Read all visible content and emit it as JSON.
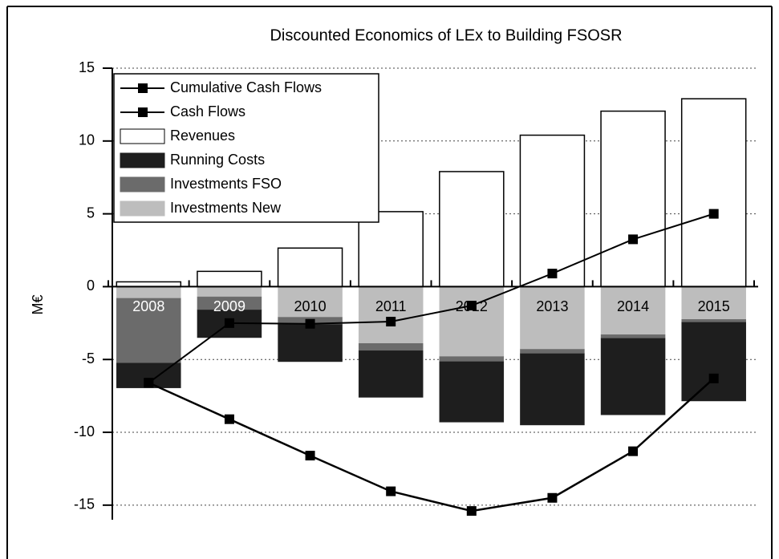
{
  "chart_data": {
    "type": "bar",
    "title": "Discounted Economics of LEx to Building FSOSR",
    "y_label": "M€",
    "categories": [
      "2008",
      "2009",
      "2010",
      "2011",
      "2012",
      "2013",
      "2014",
      "2015"
    ],
    "ylim": [
      -16,
      15
    ],
    "yticks": [
      -15,
      -10,
      -5,
      0,
      5,
      10,
      15
    ],
    "grid": true,
    "legend": "upper left",
    "series": [
      {
        "name": "Cumulative Cash Flows",
        "type": "line",
        "color": "#000000",
        "values": [
          -6.6,
          -9.1,
          -11.6,
          -14.05,
          -15.4,
          -14.5,
          -11.3,
          -6.3
        ]
      },
      {
        "name": "Cash Flows",
        "type": "line",
        "color": "#000000",
        "values": [
          -6.6,
          -2.5,
          -2.55,
          -2.4,
          -1.3,
          0.9,
          3.25,
          5.0
        ]
      },
      {
        "name": "Revenues",
        "type": "bar",
        "color": "#ffffff",
        "values": [
          0.33,
          1.05,
          2.65,
          5.15,
          7.9,
          10.4,
          12.05,
          12.9
        ]
      },
      {
        "name": "Running Costs",
        "type": "bar",
        "color": "#1e1e1e",
        "values": [
          -1.7,
          -1.9,
          -2.55,
          -3.2,
          -4.15,
          -4.9,
          -5.25,
          -5.4
        ]
      },
      {
        "name": "Investments FSO",
        "type": "bar",
        "color": "#6b6b6b",
        "values": [
          -4.45,
          -0.9,
          -0.5,
          -0.5,
          -0.35,
          -0.3,
          -0.25,
          -0.2
        ]
      },
      {
        "name": "Investments New",
        "type": "bar",
        "color": "#bdbdbd",
        "values": [
          -0.8,
          -0.7,
          -2.1,
          -3.9,
          -4.8,
          -4.3,
          -3.3,
          -2.25
        ]
      }
    ]
  }
}
